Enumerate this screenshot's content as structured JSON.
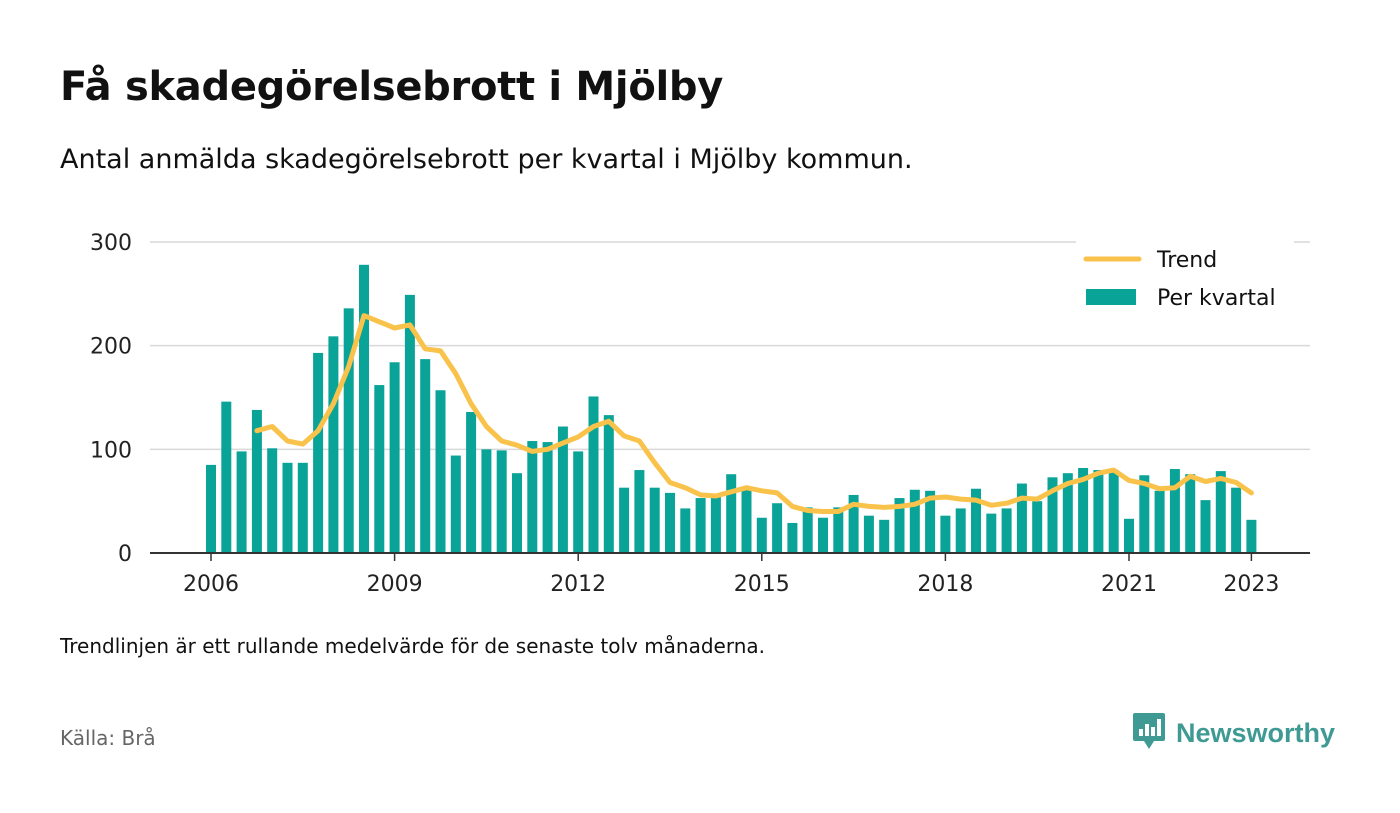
{
  "title": "Få skadegörelsebrott i Mjölby",
  "subtitle": "Antal anmälda skadegörelsebrott per kvartal i Mjölby kommun.",
  "note": "Trendlinjen är ett rullande medelvärde för de senaste tolv månaderna.",
  "source": "Källa: Brå",
  "brand": {
    "name": "Newsworthy",
    "icon": "newsworthy-logo-icon",
    "color": "#3f9a94"
  },
  "colors": {
    "bars": "#0aa398",
    "trend": "#f9c24b",
    "grid": "#d9d9d9",
    "axis": "#333333"
  },
  "chart_data": {
    "type": "bar",
    "xlabel": "",
    "ylabel": "",
    "ylim": [
      0,
      300
    ],
    "yticks": [
      "0",
      "100",
      "200",
      "300"
    ],
    "xticks": [
      "2006",
      "2009",
      "2012",
      "2015",
      "2018",
      "2021",
      "2023"
    ],
    "grid": true,
    "legend_position": "top-right",
    "x_start": "2006 Q1",
    "x_end": "2023 Q1",
    "series": [
      {
        "name": "Per kvartal",
        "type": "bar",
        "values": [
          85,
          146,
          98,
          138,
          101,
          87,
          87,
          193,
          209,
          236,
          278,
          162,
          184,
          249,
          187,
          157,
          94,
          136,
          100,
          99,
          77,
          108,
          107,
          122,
          98,
          151,
          133,
          63,
          80,
          63,
          58,
          43,
          53,
          55,
          76,
          63,
          34,
          48,
          29,
          44,
          34,
          44,
          56,
          36,
          32,
          53,
          61,
          60,
          36,
          43,
          62,
          38,
          43,
          67,
          50,
          73,
          77,
          82,
          80,
          80,
          33,
          75,
          60,
          81,
          76,
          51,
          79,
          63,
          32
        ]
      },
      {
        "name": "Trend",
        "type": "line",
        "values": [
          null,
          null,
          null,
          118,
          122,
          108,
          105,
          118,
          144,
          180,
          229,
          223,
          217,
          220,
          197,
          195,
          173,
          144,
          122,
          108,
          104,
          98,
          100,
          106,
          112,
          122,
          127,
          113,
          108,
          87,
          68,
          63,
          56,
          55,
          59,
          63,
          60,
          58,
          45,
          41,
          40,
          40,
          47,
          45,
          44,
          45,
          47,
          53,
          54,
          52,
          51,
          46,
          48,
          53,
          52,
          60,
          67,
          71,
          77,
          80,
          70,
          67,
          62,
          63,
          74,
          69,
          72,
          68,
          58
        ]
      }
    ]
  }
}
